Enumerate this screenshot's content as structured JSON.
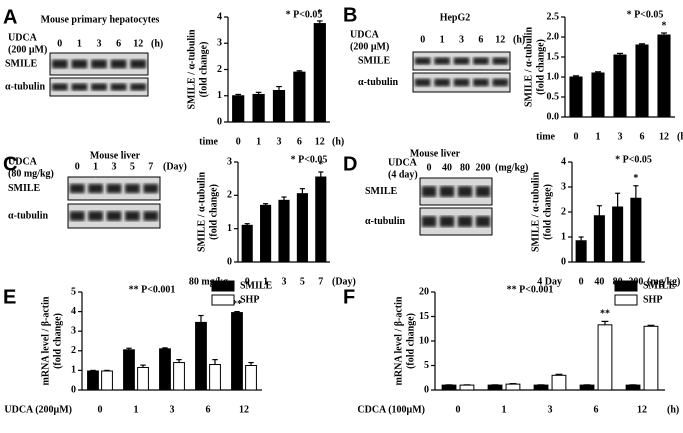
{
  "chart_data": [
    {
      "type": "bar",
      "panel_label": "A",
      "blot_title": "Mouse primary hepatocytes",
      "treatment": [
        "UDCA",
        "(200 μM)"
      ],
      "lanes": [
        "0",
        "1",
        "3",
        "6",
        "12"
      ],
      "lane_unit": "(h)",
      "blot_rows": [
        "SMILE",
        "α-tubulin"
      ],
      "annotation": "* P<0.05",
      "y_label": [
        "SMILE / α-tubulin",
        "(fold change)"
      ],
      "x_label": "time",
      "x_unit": "(h)",
      "categories": [
        "0",
        "1",
        "3",
        "6",
        "12"
      ],
      "values": [
        1.0,
        1.05,
        1.2,
        1.9,
        3.75
      ],
      "errors": [
        0.05,
        0.08,
        0.15,
        0.05,
        0.1
      ],
      "sig_labels": [
        null,
        null,
        null,
        null,
        "*"
      ],
      "color": "#000000",
      "ylim": [
        0,
        4
      ],
      "yticks": [
        0,
        1,
        2,
        3,
        4
      ]
    },
    {
      "type": "bar",
      "panel_label": "B",
      "blot_title": "HepG2",
      "treatment": [
        "UDCA",
        "(200 μM)"
      ],
      "lanes": [
        "0",
        "1",
        "3",
        "6",
        "12"
      ],
      "lane_unit": "(h)",
      "blot_rows": [
        "SMILE",
        "α-tubulin"
      ],
      "annotation": "* P<0.05",
      "y_label": [
        "SMILE / α-tubulin",
        "(fold change)"
      ],
      "x_label": "time",
      "x_unit": "(h)",
      "categories": [
        "0",
        "1",
        "3",
        "6",
        "12"
      ],
      "values": [
        1.0,
        1.1,
        1.55,
        1.8,
        2.05
      ],
      "errors": [
        0.03,
        0.03,
        0.04,
        0.03,
        0.05
      ],
      "sig_labels": [
        null,
        null,
        null,
        null,
        "*"
      ],
      "color": "#000000",
      "ylim": [
        0,
        2.5
      ],
      "yticks": [
        {
          "value": 0,
          "label": "0.0"
        },
        {
          "value": 0.5,
          "label": "0.5"
        },
        {
          "value": 1,
          "label": "1.0"
        },
        {
          "value": 1.5,
          "label": "1.5"
        },
        {
          "value": 2,
          "label": "2.0"
        },
        {
          "value": 2.5,
          "label": "2.5"
        }
      ]
    },
    {
      "type": "bar",
      "panel_label": "C",
      "blot_title": "Mouse liver",
      "treatment": [
        "UDCA",
        "(80 mg/kg)"
      ],
      "lanes": [
        "0",
        "1",
        "3",
        "5",
        "7"
      ],
      "lane_unit": "(Day)",
      "blot_rows": [
        "SMILE",
        "α-tubulin"
      ],
      "annotation": "* P<0.05",
      "y_label": [
        "SMILE / α-tubulin",
        "(fold change)"
      ],
      "x_label": "80  mg/kg",
      "x_unit": "(Day)",
      "categories": [
        "0",
        "1",
        "3",
        "5",
        "7"
      ],
      "values": [
        1.1,
        1.7,
        1.85,
        2.05,
        2.55
      ],
      "errors": [
        0.05,
        0.05,
        0.1,
        0.15,
        0.15
      ],
      "sig_labels": [
        null,
        null,
        null,
        null,
        "*"
      ],
      "color": "#000000",
      "ylim": [
        0,
        3
      ],
      "yticks": [
        0,
        1,
        2,
        3
      ]
    },
    {
      "type": "bar",
      "panel_label": "D",
      "blot_title": "Mouse liver",
      "treatment": [
        "UDCA",
        "(4 day)"
      ],
      "lanes": [
        "0",
        "40",
        "80",
        "200"
      ],
      "lane_unit": "(mg/kg)",
      "blot_rows": [
        "SMILE",
        "α-tubulin"
      ],
      "annotation": "* P<0.05",
      "y_label": [
        "SMILE / α-tubulin",
        "(fold change)"
      ],
      "x_label": "4 Day",
      "x_unit": "(mg/kg)",
      "categories": [
        "0",
        "40",
        "80",
        "200"
      ],
      "values": [
        0.85,
        1.85,
        2.2,
        2.55
      ],
      "errors": [
        0.15,
        0.4,
        0.55,
        0.5
      ],
      "sig_labels": [
        null,
        null,
        null,
        "*"
      ],
      "color": "#000000",
      "ylim": [
        0,
        4
      ],
      "yticks": [
        0,
        1,
        2,
        3,
        4
      ]
    },
    {
      "type": "bar",
      "panel_label": "E",
      "annotation": "** P<0.001",
      "y_label": [
        "mRNA level / β-actin",
        "(fold change)"
      ],
      "x_label": "UDCA (200μM)",
      "categories": [
        "0",
        "1",
        "3",
        "6",
        "12"
      ],
      "series": [
        {
          "name": "SMILE",
          "color": "#000000",
          "values": [
            0.97,
            2.05,
            2.1,
            3.45,
            3.95
          ],
          "errors": [
            0.03,
            0.08,
            0.05,
            0.35,
            0.05
          ],
          "sig_labels": [
            null,
            null,
            null,
            null,
            "**"
          ]
        },
        {
          "name": "SHP",
          "color": "#ffffff",
          "values": [
            0.97,
            1.15,
            1.4,
            1.3,
            1.25
          ],
          "errors": [
            0.03,
            0.12,
            0.15,
            0.25,
            0.15
          ]
        }
      ],
      "ylim": [
        0,
        5
      ],
      "yticks": [
        0,
        1,
        2,
        3,
        4,
        5
      ],
      "legend": "upper right"
    },
    {
      "type": "bar",
      "panel_label": "F",
      "annotation": "** P<0.001",
      "y_label": [
        "mRNA level / β-actin",
        "(fold change)"
      ],
      "x_label": "CDCA (100μM)",
      "x_unit": "(h)",
      "categories": [
        "0",
        "1",
        "3",
        "6",
        "12"
      ],
      "series": [
        {
          "name": "SMILE",
          "color": "#000000",
          "values": [
            1.0,
            1.0,
            1.0,
            1.0,
            1.0
          ],
          "errors": [
            0.05,
            0.05,
            0.05,
            0.05,
            0.05
          ]
        },
        {
          "name": "SHP",
          "color": "#ffffff",
          "values": [
            1.0,
            1.2,
            3.0,
            13.3,
            13.0
          ],
          "errors": [
            0.05,
            0.1,
            0.2,
            0.7,
            0.2
          ],
          "sig_labels": [
            null,
            null,
            null,
            "**",
            null
          ]
        }
      ],
      "ylim": [
        0,
        20
      ],
      "yticks": [
        0,
        5,
        10,
        15,
        20
      ],
      "legend": "upper right"
    }
  ]
}
